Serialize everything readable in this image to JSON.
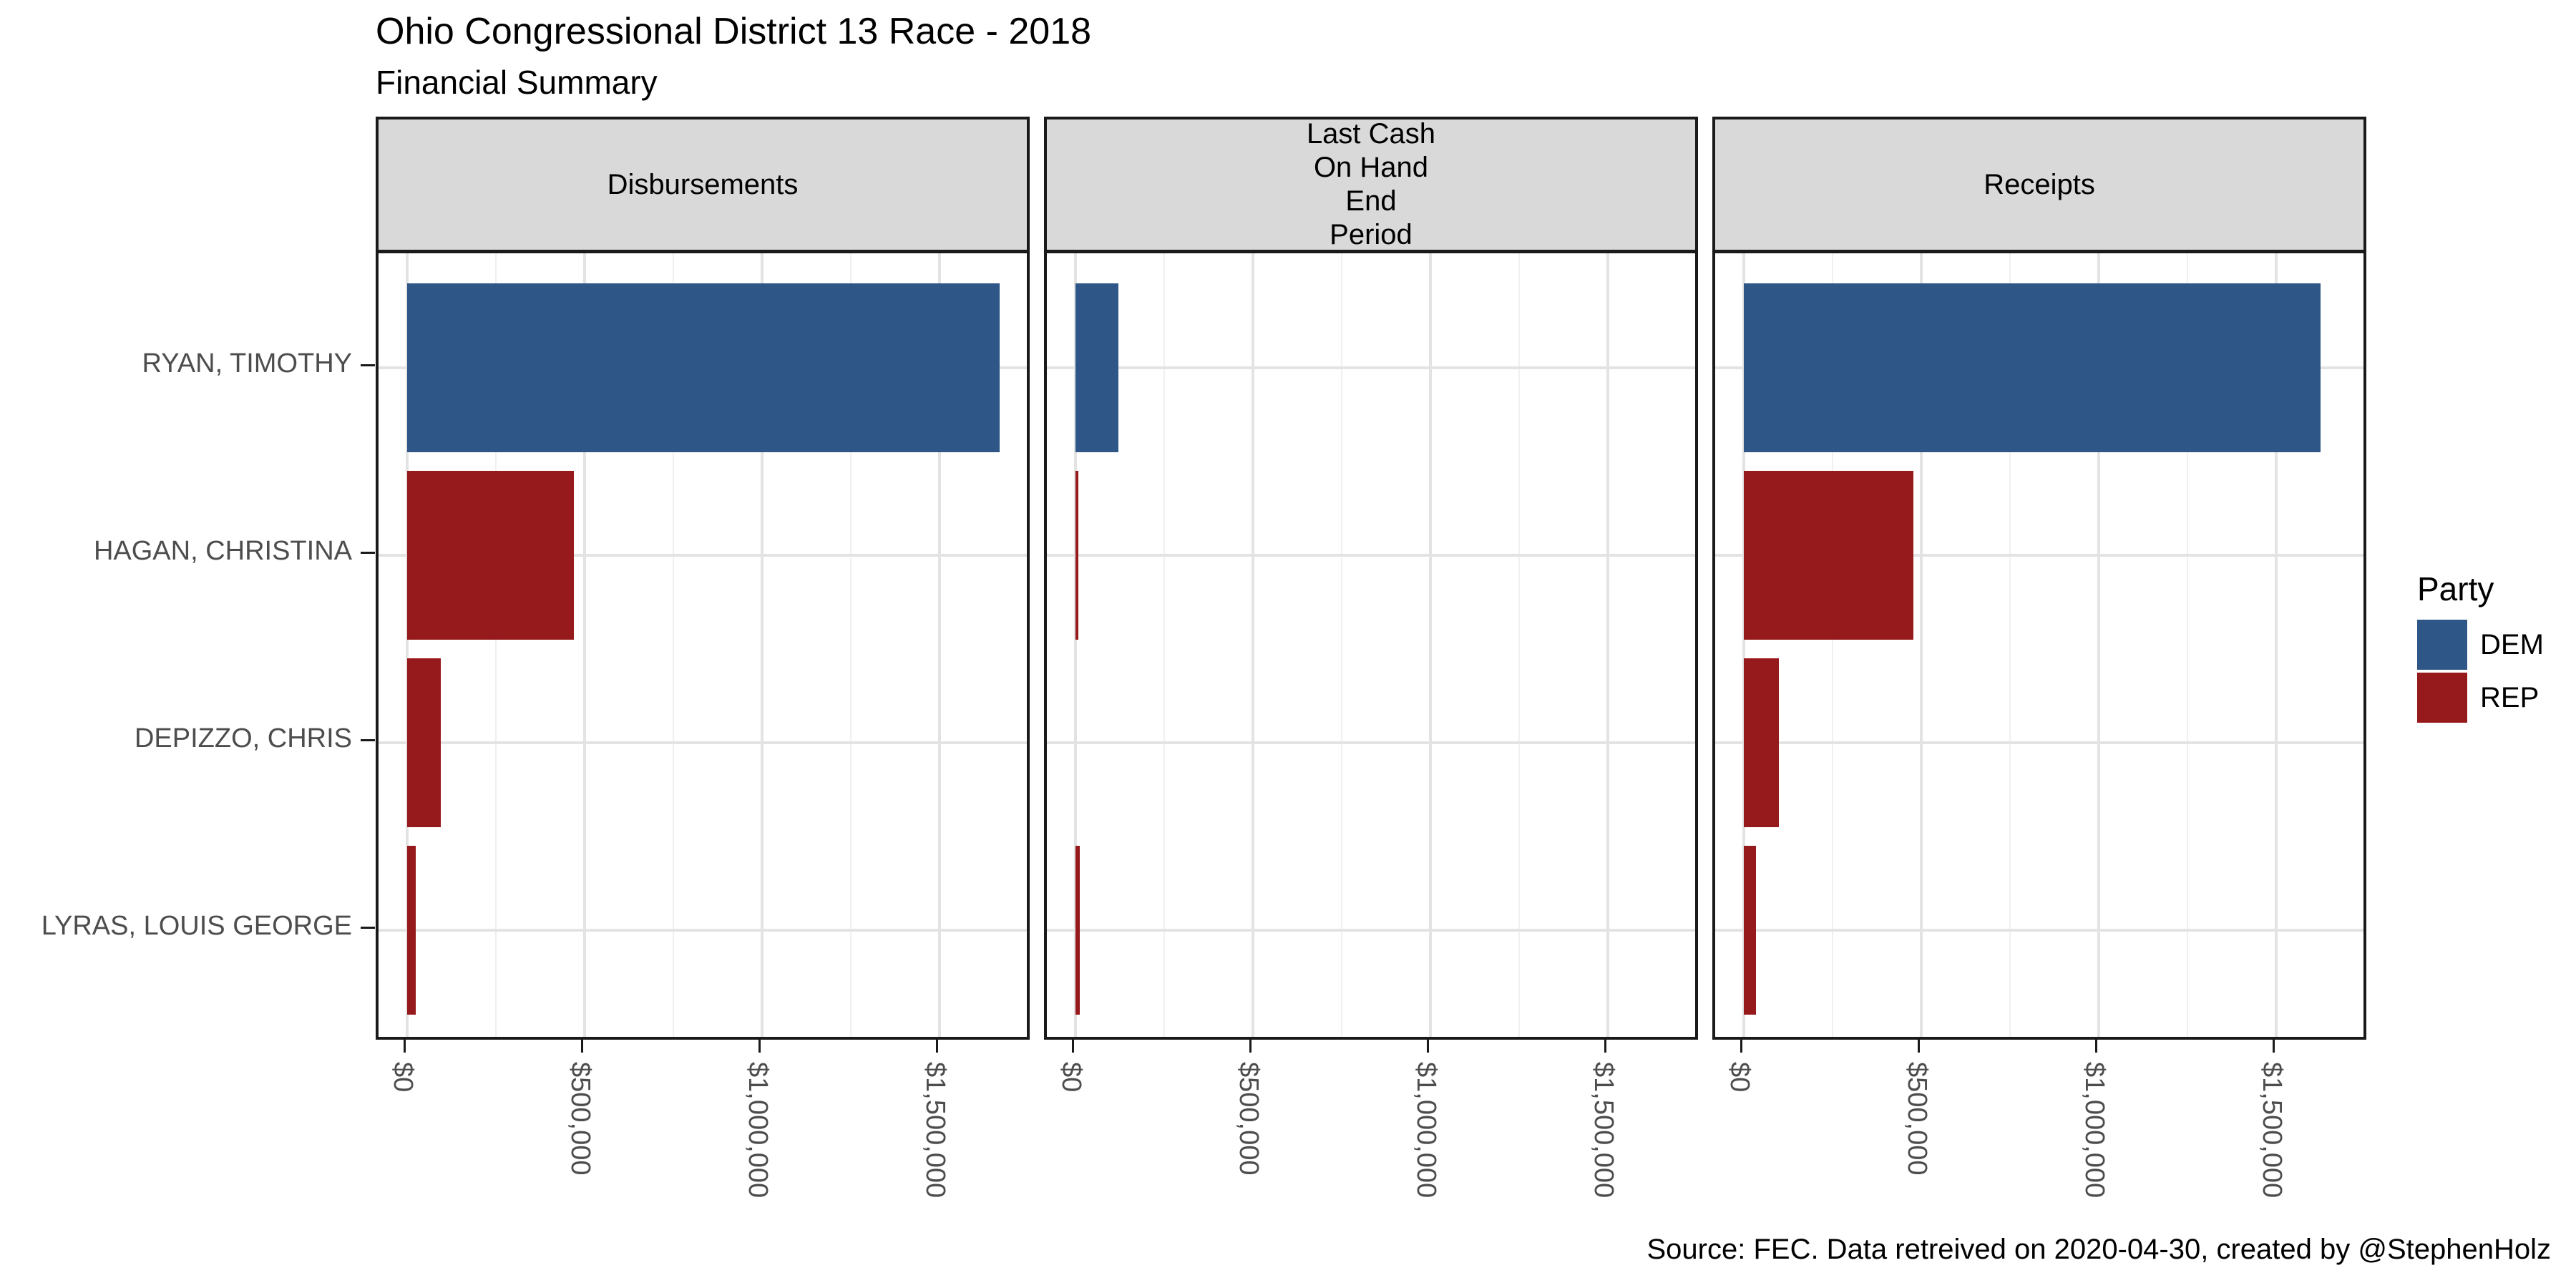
{
  "header": {
    "title": "Ohio Congressional District 13 Race - 2018",
    "subtitle": "Financial Summary"
  },
  "caption": "Source: FEC. Data retreived on 2020-04-30, created by @StephenHolz",
  "chart_data": {
    "type": "bar",
    "orientation": "horizontal",
    "title": "Ohio Congressional District 13 Race - 2018",
    "subtitle": "Financial Summary",
    "categories": [
      "RYAN, TIMOTHY",
      "HAGAN, CHRISTINA",
      "DEPIZZO, CHRIS",
      "LYRAS, LOUIS GEORGE"
    ],
    "category_party": [
      "DEM",
      "REP",
      "REP",
      "REP"
    ],
    "panels": [
      {
        "facet_label_lines": [
          "Disbursements"
        ],
        "values": [
          1670000,
          470000,
          95000,
          24000
        ]
      },
      {
        "facet_label_lines": [
          "Last Cash",
          "On Hand",
          "End",
          "Period"
        ],
        "values": [
          120000,
          8000,
          0,
          13000
        ]
      },
      {
        "facet_label_lines": [
          "Receipts"
        ],
        "values": [
          1625000,
          478000,
          98000,
          35000
        ]
      }
    ],
    "x_ticks": [
      {
        "value": 0,
        "label": "$0"
      },
      {
        "value": 500000,
        "label": "$500,000"
      },
      {
        "value": 1000000,
        "label": "$1,000,000"
      },
      {
        "value": 1500000,
        "label": "$1,500,000"
      }
    ],
    "x_minor": [
      250000,
      750000,
      1250000,
      1750000
    ],
    "xlim": [
      0,
      1760000
    ],
    "grid": "on",
    "legend": {
      "title": "Party",
      "position": "right",
      "entries": [
        {
          "label": "DEM",
          "color": "#2E5687"
        },
        {
          "label": "REP",
          "color": "#96191C"
        }
      ]
    },
    "colors": {
      "panel_border": "#1A1A1A",
      "strip_background": "#D9D9D9",
      "grid_major": "#E3E3E3",
      "grid_minor": "#F0F0F0",
      "axis_text": "#4D4D4D"
    }
  }
}
